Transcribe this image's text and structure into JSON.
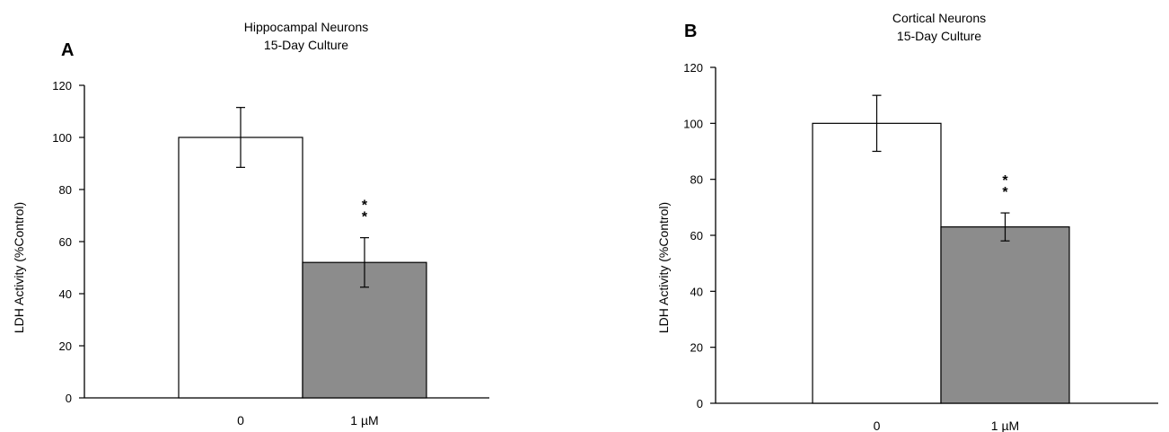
{
  "chart_data": [
    {
      "type": "bar",
      "panel_label": "A",
      "title_lines": [
        "Hippocampal Neurons",
        "15-Day Culture"
      ],
      "xlabel": "",
      "ylabel": "LDH Activity (%Control)",
      "ylim": [
        0,
        120
      ],
      "yticks": [
        0,
        20,
        40,
        60,
        80,
        100,
        120
      ],
      "categories": [
        "0",
        "1 µM"
      ],
      "values": [
        100,
        52
      ],
      "errors": [
        11.5,
        9.5
      ],
      "bar_colors": [
        "#ffffff",
        "#8c8c8c"
      ],
      "annotations": [
        {
          "category_index": 1,
          "text": "**"
        }
      ],
      "grid": false,
      "legend": "none"
    },
    {
      "type": "bar",
      "panel_label": "B",
      "title_lines": [
        "Cortical Neurons",
        "15-Day Culture"
      ],
      "xlabel": "",
      "ylabel": "LDH Activity (%Control)",
      "ylim": [
        0,
        120
      ],
      "yticks": [
        0,
        20,
        40,
        60,
        80,
        100,
        120
      ],
      "categories": [
        "0",
        "1 µM"
      ],
      "values": [
        100,
        63
      ],
      "errors": [
        10,
        5
      ],
      "bar_colors": [
        "#ffffff",
        "#8c8c8c"
      ],
      "annotations": [
        {
          "category_index": 1,
          "text": "**"
        }
      ],
      "grid": false,
      "legend": "none"
    }
  ]
}
